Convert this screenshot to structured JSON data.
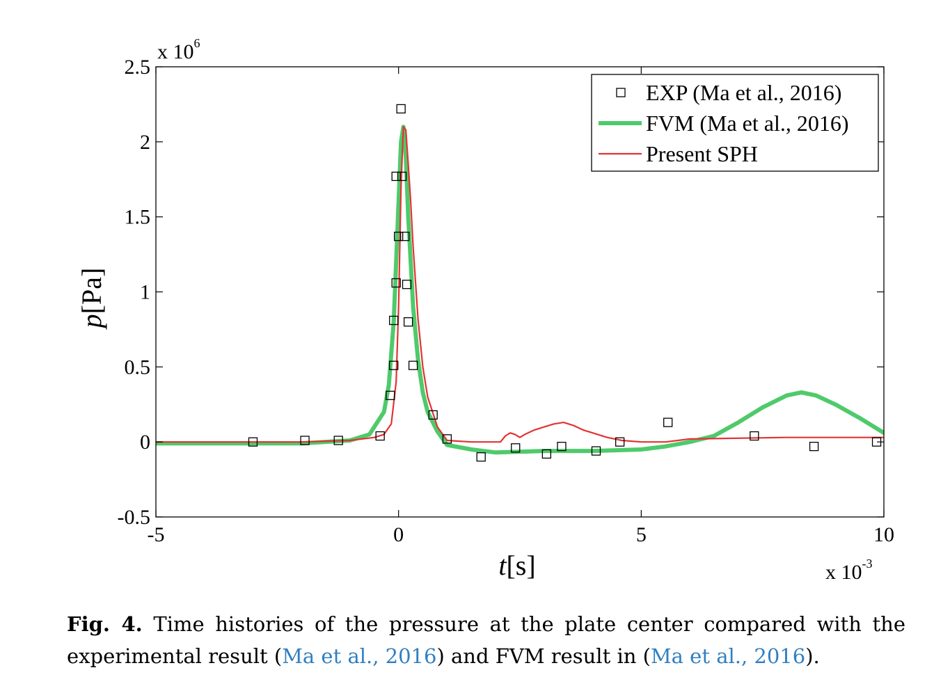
{
  "chart_data": {
    "type": "line",
    "xlabel": "t[s]",
    "ylabel": "p[Pa]",
    "x_multiplier": "x 10",
    "x_multiplier_exp": "-3",
    "y_multiplier": "x 10",
    "y_multiplier_exp": "6",
    "xlim": [
      -5,
      10
    ],
    "ylim": [
      -0.5,
      2.5
    ],
    "x_ticks": [
      -5,
      0,
      5,
      10
    ],
    "x_tick_labels": [
      "-5",
      "0",
      "5",
      "10"
    ],
    "y_ticks": [
      -0.5,
      0,
      0.5,
      1,
      1.5,
      2,
      2.5
    ],
    "y_tick_labels": [
      "-0.5",
      "0",
      "0.5",
      "1",
      "1.5",
      "2",
      "2.5"
    ],
    "grid": false,
    "legend_position": "top-right",
    "series": [
      {
        "name": "EXP (Ma et al., 2016)",
        "style": "markers",
        "marker": "square",
        "color": "#000000",
        "x": [
          -3.0,
          -1.93,
          -1.24,
          -0.38,
          -0.17,
          -0.1,
          -0.1,
          -0.05,
          0.0,
          -0.05,
          0.05,
          0.07,
          0.13,
          0.17,
          0.2,
          0.3,
          0.71,
          1.0,
          1.7,
          2.41,
          3.05,
          3.36,
          4.07,
          4.56,
          5.55,
          7.33,
          8.56,
          9.85
        ],
        "y": [
          0.0,
          0.01,
          0.01,
          0.04,
          0.31,
          0.51,
          0.81,
          1.06,
          1.37,
          1.77,
          2.22,
          1.77,
          1.37,
          1.05,
          0.8,
          0.51,
          0.18,
          0.02,
          -0.1,
          -0.04,
          -0.08,
          -0.03,
          -0.06,
          0.0,
          0.13,
          0.04,
          -0.03,
          0.0
        ]
      },
      {
        "name": "FVM (Ma et al., 2016)",
        "style": "line",
        "color": "#4fca6b",
        "x": [
          -5.0,
          -2.0,
          -1.0,
          -0.6,
          -0.3,
          -0.2,
          -0.1,
          0.0,
          0.05,
          0.1,
          0.15,
          0.2,
          0.3,
          0.4,
          0.5,
          0.6,
          0.8,
          1.0,
          1.5,
          2.0,
          3.0,
          4.0,
          5.0,
          5.5,
          6.0,
          6.5,
          7.0,
          7.5,
          8.0,
          8.3,
          8.6,
          9.0,
          9.5,
          10.0
        ],
        "y": [
          -0.01,
          -0.01,
          0.01,
          0.05,
          0.2,
          0.38,
          0.8,
          1.6,
          2.0,
          2.1,
          1.9,
          1.5,
          0.9,
          0.55,
          0.33,
          0.2,
          0.07,
          -0.02,
          -0.05,
          -0.07,
          -0.06,
          -0.06,
          -0.05,
          -0.03,
          0.0,
          0.04,
          0.13,
          0.23,
          0.31,
          0.33,
          0.31,
          0.25,
          0.16,
          0.06
        ]
      },
      {
        "name": "Present SPH",
        "style": "line",
        "color": "#e23333",
        "x": [
          -5.0,
          -3.5,
          -3.0,
          -2.0,
          -1.0,
          -0.5,
          -0.3,
          -0.15,
          -0.05,
          0.0,
          0.05,
          0.1,
          0.15,
          0.2,
          0.25,
          0.3,
          0.4,
          0.5,
          0.6,
          0.8,
          1.0,
          1.5,
          2.1,
          2.2,
          2.3,
          2.4,
          2.5,
          2.6,
          2.8,
          3.0,
          3.2,
          3.4,
          3.6,
          3.8,
          4.0,
          4.3,
          4.6,
          5.0,
          5.5,
          6.0,
          8.0,
          10.0
        ],
        "y": [
          0.0,
          0.0,
          0.0,
          0.0,
          0.01,
          0.03,
          0.05,
          0.12,
          0.4,
          0.9,
          1.7,
          2.1,
          2.08,
          1.85,
          1.6,
          1.3,
          0.82,
          0.5,
          0.3,
          0.1,
          0.01,
          0.0,
          0.0,
          0.04,
          0.06,
          0.05,
          0.03,
          0.05,
          0.08,
          0.1,
          0.12,
          0.13,
          0.11,
          0.08,
          0.06,
          0.03,
          0.01,
          0.0,
          0.0,
          0.02,
          0.03,
          0.03
        ]
      }
    ]
  },
  "caption": {
    "label": "Fig. 4.",
    "text_1": " Time histories of the pressure at the plate center compared with the experimental result (",
    "ref_1": "Ma et al., 2016",
    "text_2": ") and FVM result in (",
    "ref_2": "Ma et al., 2016",
    "text_3": ")."
  }
}
